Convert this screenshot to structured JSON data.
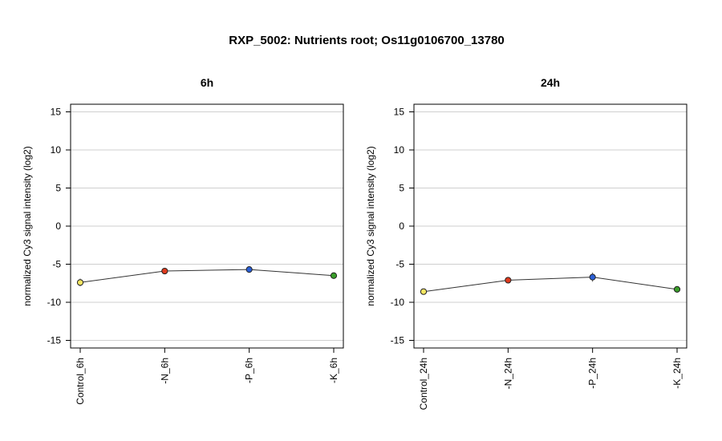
{
  "chart_data": {
    "title": "RXP_5002: Nutrients root; Os11g0106700_13780",
    "ylabel": "normalized Cy3 signal intensity (log2)",
    "ylim": [
      -16,
      16
    ],
    "yticks": [
      -15,
      -10,
      -5,
      0,
      5,
      10,
      15
    ],
    "grid": true,
    "panels": [
      {
        "type": "line",
        "title": "6h",
        "categories": [
          "Control_6h",
          "-N_6h",
          "-P_6h",
          "-K_6h"
        ],
        "values": [
          -7.4,
          -5.9,
          -5.7,
          -6.5
        ],
        "errors": [
          0.5,
          0.2,
          0.2,
          0.2
        ],
        "colors": [
          "#f5e663",
          "#e03a1e",
          "#2a5fd6",
          "#3a9e2a"
        ]
      },
      {
        "type": "line",
        "title": "24h",
        "categories": [
          "Control_24h",
          "-N_24h",
          "-P_24h",
          "-K_24h"
        ],
        "values": [
          -8.6,
          -7.1,
          -6.7,
          -8.3
        ],
        "errors": [
          0.2,
          0.3,
          0.6,
          0.4
        ],
        "colors": [
          "#f5e663",
          "#e03a1e",
          "#2a5fd6",
          "#3a9e2a"
        ]
      }
    ]
  }
}
